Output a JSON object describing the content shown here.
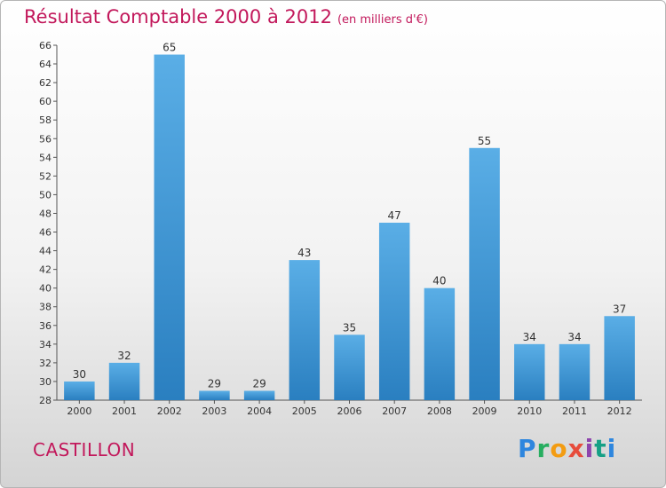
{
  "chart_data": {
    "type": "bar",
    "title": "Résultat Comptable 2000 à 2012",
    "subtitle": "(en milliers d'€)",
    "categories": [
      "2000",
      "2001",
      "2002",
      "2003",
      "2004",
      "2005",
      "2006",
      "2007",
      "2008",
      "2009",
      "2010",
      "2011",
      "2012"
    ],
    "values": [
      30,
      32,
      65,
      29,
      29,
      43,
      35,
      47,
      40,
      55,
      34,
      34,
      37
    ],
    "ylim": [
      28,
      66
    ],
    "yticks": [
      28,
      30,
      32,
      34,
      36,
      38,
      40,
      42,
      44,
      46,
      48,
      50,
      52,
      54,
      56,
      58,
      60,
      62,
      64,
      66
    ],
    "grid": false,
    "xlabel": "",
    "ylabel": "",
    "colors": {
      "bar_top": "#5aaee6",
      "bar_bottom": "#2a7fc0",
      "title": "#c2185b"
    }
  },
  "commune": "CASTILLON",
  "logo": {
    "text": "Proxiti"
  }
}
